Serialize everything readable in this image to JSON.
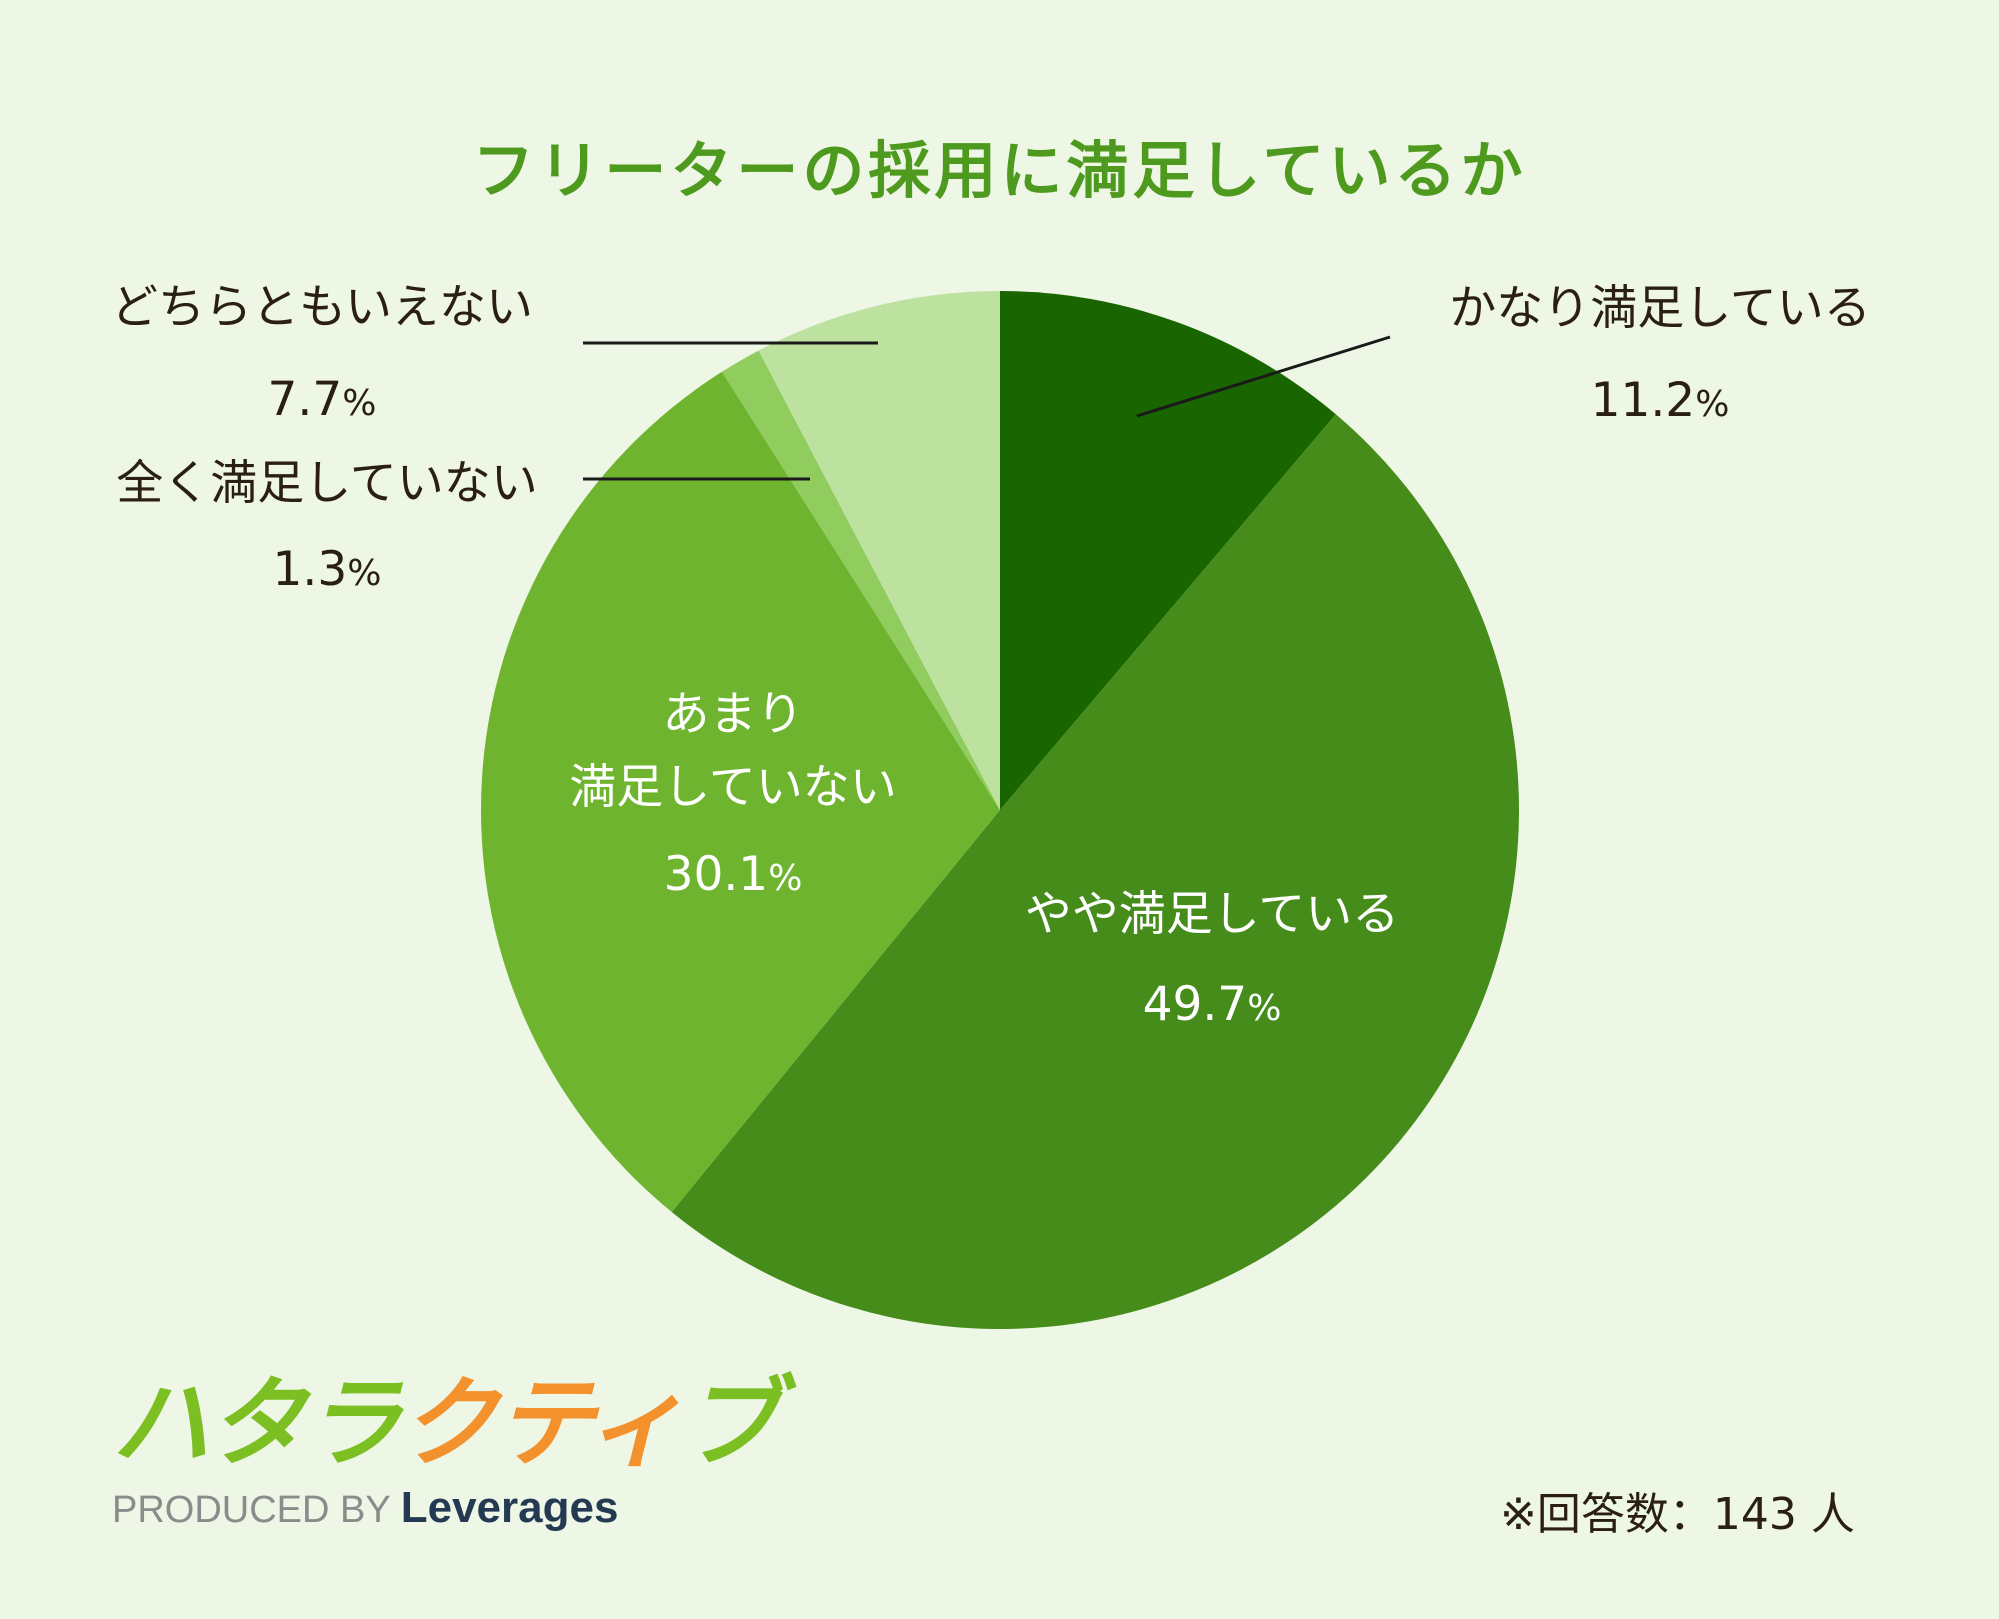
{
  "chart_data": {
    "type": "pie",
    "title": "フリーターの採用に満足しているか",
    "unit": "%",
    "slices": [
      {
        "label": "かなり満足している",
        "value": 11.2,
        "value_text": "11.2",
        "color": "#196601"
      },
      {
        "label": "やや満足している",
        "value": 49.7,
        "value_text": "49.7",
        "color": "#458c1b"
      },
      {
        "label": "あまり満足していない",
        "value": 30.1,
        "value_text": "30.1",
        "color": "#6eb42f"
      },
      {
        "label": "全く満足していない",
        "value": 1.3,
        "value_text": "1.3",
        "color": "#91cc5e"
      },
      {
        "label": "どちらともいえない",
        "value": 7.7,
        "value_text": "7.7",
        "color": "#bde29f"
      }
    ],
    "start_angle": "12 o'clock",
    "direction": "clockwise"
  },
  "labels": {
    "s0": {
      "name": "かなり満足している"
    },
    "s1": {
      "name": "やや満足している"
    },
    "s2": {
      "name_line1": "あまり",
      "name_line2": "満足していない"
    },
    "s3": {
      "name": "全く満足していない"
    },
    "s4": {
      "name": "どちらともいえない"
    },
    "percent_sign": "%"
  },
  "brand": {
    "logo_part1": "ハタラ",
    "logo_part2": "クティ",
    "logo_part3": "ブ",
    "produced_by": "PRODUCED BY",
    "company": "Leverages"
  },
  "footer": {
    "respondents": "※回答数：143 人"
  },
  "colors": {
    "background": "#eef6e6",
    "title": "#4d9a1e"
  }
}
